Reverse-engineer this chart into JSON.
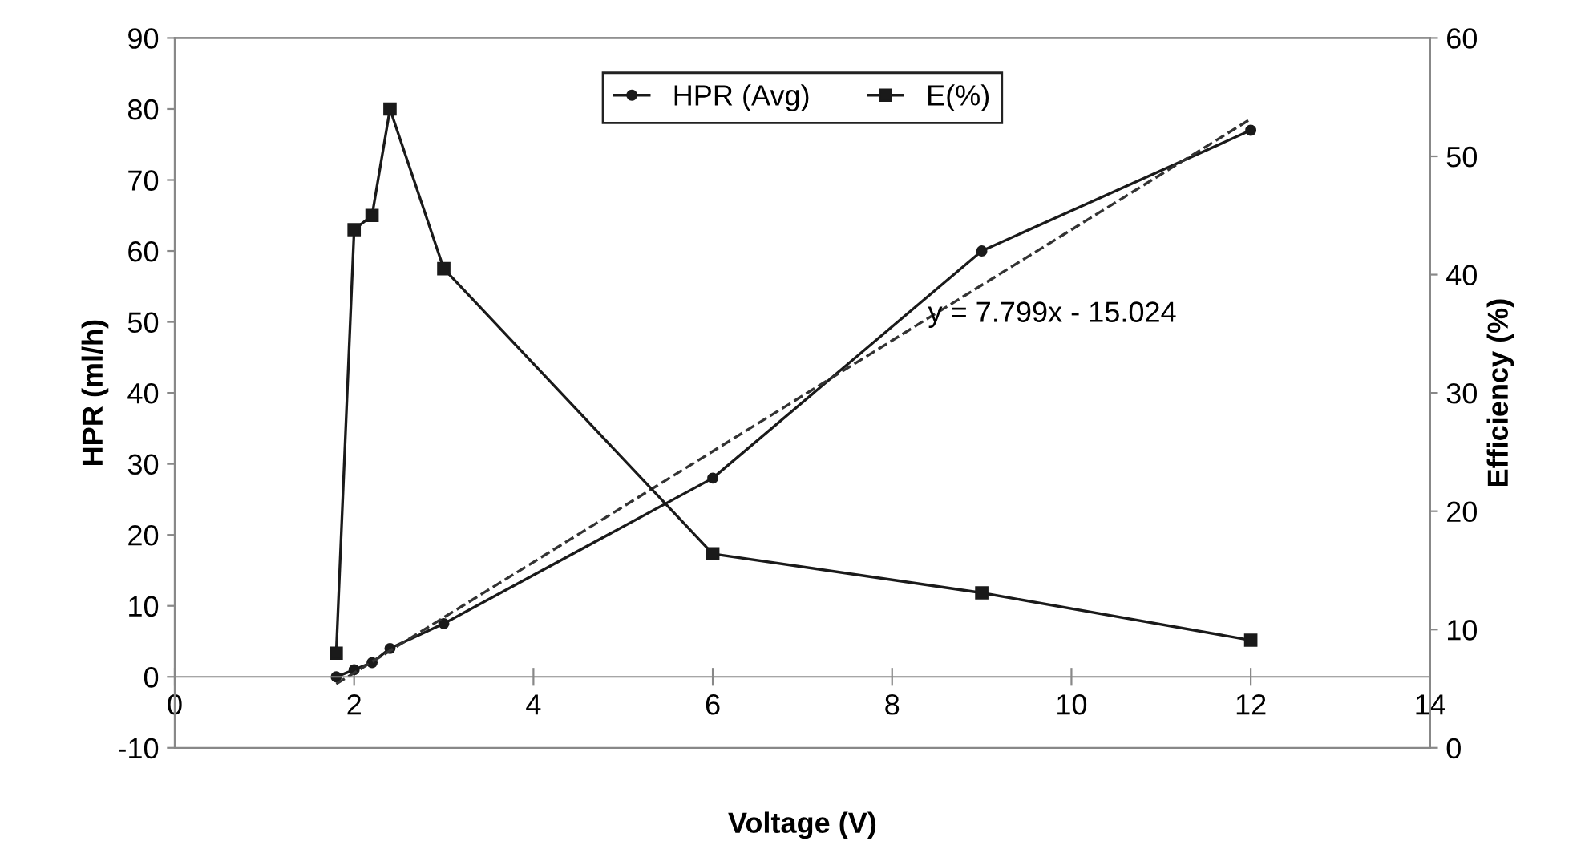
{
  "chart_data": {
    "type": "line",
    "xlabel": "Voltage (V)",
    "ylabel": "HPR (ml/h)",
    "y2label": "Efficiency (%)",
    "xlim": [
      0,
      14
    ],
    "xticks": [
      0,
      2,
      4,
      6,
      8,
      10,
      12,
      14
    ],
    "ylim": [
      -10,
      90
    ],
    "yticks": [
      -10,
      0,
      10,
      20,
      30,
      40,
      50,
      60,
      70,
      80,
      90
    ],
    "y2lim": [
      0,
      60
    ],
    "y2ticks": [
      0,
      10,
      20,
      30,
      40,
      50,
      60
    ],
    "legend": "top",
    "grid": false,
    "series": [
      {
        "name": "HPR (Avg)",
        "color": "#1a1a1a",
        "marker": "circle",
        "x": [
          1.8,
          2.0,
          2.2,
          2.4,
          3,
          6,
          9,
          12
        ],
        "values": [
          0,
          1,
          2,
          4,
          7.5,
          28,
          60,
          77
        ]
      },
      {
        "name": "E(%)",
        "color": "#1a1a1a",
        "marker": "square",
        "axis": "y2",
        "x": [
          1.8,
          2.0,
          2.2,
          2.4,
          3,
          6,
          9,
          12
        ],
        "values": [
          8,
          43.8,
          45,
          54,
          40.5,
          16.4,
          13.1,
          9.1
        ]
      },
      {
        "type": "line",
        "color": "#333333",
        "line_style": "dashed",
        "marker": "none",
        "x": [
          1.8,
          12
        ],
        "values": [
          -1.0,
          78.6
        ]
      }
    ],
    "annotations": [
      "y = 7.799x - 15.024"
    ]
  }
}
